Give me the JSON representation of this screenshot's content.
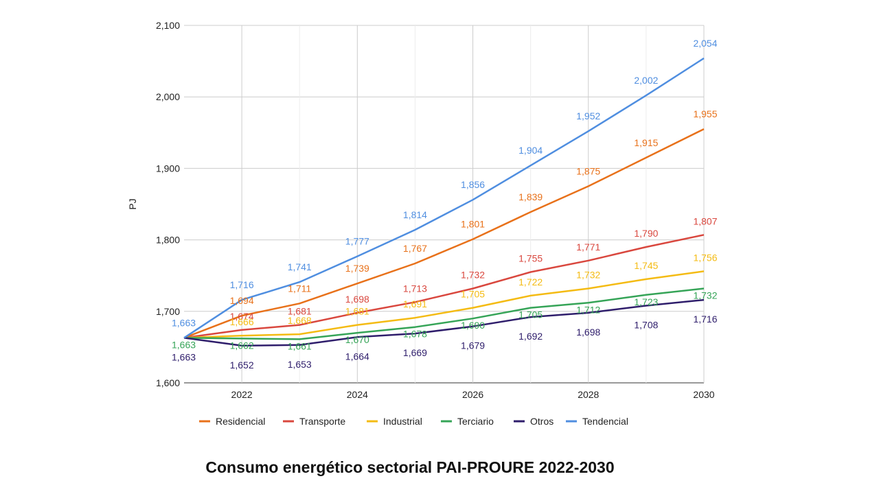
{
  "caption": "Consumo energético sectorial PAI-PROURE 2022-2030",
  "chart_data": {
    "type": "line",
    "title": "",
    "xlabel": "",
    "ylabel": "PJ",
    "x": [
      2021,
      2022,
      2023,
      2024,
      2025,
      2026,
      2027,
      2028,
      2029,
      2030
    ],
    "x_ticks": [
      "2022",
      "2024",
      "2026",
      "2028",
      "2030"
    ],
    "y_ticks": [
      "1,600",
      "1,700",
      "1,800",
      "1,900",
      "2,000",
      "2,100"
    ],
    "ylim": [
      1600,
      2100
    ],
    "grid": true,
    "legend_position": "bottom",
    "series": [
      {
        "name": "Residencial",
        "color": "#e8711a",
        "values": [
          1663,
          1694,
          1711,
          1739,
          1767,
          1801,
          1839,
          1875,
          1915,
          1955
        ],
        "labels": [
          "",
          "1,694",
          "1,711",
          "1,739",
          "1,767",
          "1,801",
          "1,839",
          "1,875",
          "1,915",
          "1,955"
        ]
      },
      {
        "name": "Transporte",
        "color": "#d9473e",
        "values": [
          1663,
          1674,
          1681,
          1698,
          1713,
          1732,
          1755,
          1771,
          1790,
          1807
        ],
        "labels": [
          "",
          "1,674",
          "1,681",
          "1,698",
          "1,713",
          "1,732",
          "1,755",
          "1,771",
          "1,790",
          "1,807"
        ]
      },
      {
        "name": "Industrial",
        "color": "#f4bb13",
        "values": [
          1663,
          1666,
          1668,
          1681,
          1691,
          1705,
          1722,
          1732,
          1745,
          1756
        ],
        "labels": [
          "",
          "1,666",
          "1,668",
          "1,681",
          "1,691",
          "1,705",
          "1,722",
          "1,732",
          "1,745",
          "1,756"
        ]
      },
      {
        "name": "Terciario",
        "color": "#35a457",
        "values": [
          1663,
          1662,
          1661,
          1670,
          1678,
          1690,
          1705,
          1712,
          1723,
          1732
        ],
        "labels": [
          "1,663",
          "1,662",
          "1,661",
          "1,670",
          "1,678",
          "1,690",
          "1,705",
          "1,712",
          "1,723",
          "1,732"
        ]
      },
      {
        "name": "Otros",
        "color": "#2e1d6b",
        "values": [
          1663,
          1652,
          1653,
          1664,
          1669,
          1679,
          1692,
          1698,
          1708,
          1716
        ],
        "labels": [
          "1,663",
          "1,652",
          "1,653",
          "1,664",
          "1,669",
          "1,679",
          "1,692",
          "1,698",
          "1,708",
          "1,716"
        ]
      },
      {
        "name": "Tendencial",
        "color": "#4f8ee0",
        "values": [
          1663,
          1716,
          1741,
          1777,
          1814,
          1856,
          1904,
          1952,
          2002,
          2054
        ],
        "labels": [
          "1,663",
          "1,716",
          "1,741",
          "1,777",
          "1,814",
          "1,856",
          "1,904",
          "1,952",
          "2,002",
          "2,054"
        ]
      }
    ]
  }
}
